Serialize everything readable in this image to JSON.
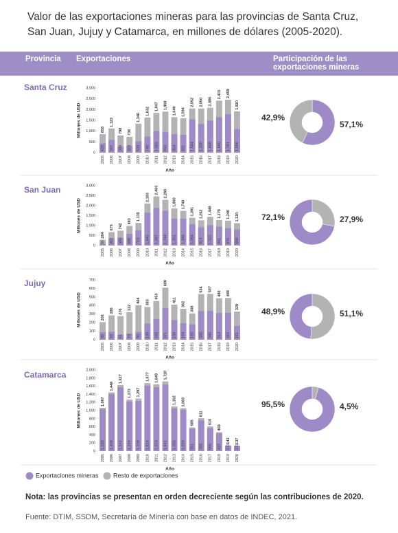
{
  "title": [
    "Valor de las exportaciones mineras para las provincias de Santa Cruz,",
    "San Juan, Jujuy y Catamarca, en millones de dólares (2005-2020)."
  ],
  "header": {
    "provincia": "Provincia",
    "exportaciones": "Exportaciones",
    "participacion": [
      "Participación de las",
      "exportaciones mineras"
    ]
  },
  "legend": [
    {
      "name": "Exportaciones mineras",
      "color": "#9d8ac6"
    },
    {
      "name": "Resto de exportaciones",
      "color": "#b3b3b3"
    }
  ],
  "note": "Nota: las provincias se presentan en orden decreciente según las contribuciones de 2020.",
  "source": "Fuente: DTIM, SSDM, Secretaría de Minería con base en datos de INDEC, 2021.",
  "chart_data": [
    {
      "type": "bar",
      "title": "Santa Cruz",
      "ylabel": "Millones de USD",
      "xlabel": "Año",
      "total_color": "#b3b3b3",
      "categories": [
        "2005",
        "2006",
        "2007",
        "2008",
        "2009",
        "2010",
        "2011",
        "2012",
        "2013",
        "2014",
        "2015",
        "2016",
        "2017",
        "2018",
        "2019",
        "2020"
      ],
      "series": [
        {
          "name": "Exportaciones mineras",
          "color": "#9d8ac6",
          "values": [
            429,
            597,
            289,
            323,
            533,
            746,
            1002,
            950,
            854,
            831,
            1544,
            1330,
            1489,
            1640,
            1791,
            1096
          ],
          "value_labels": [
            "429",
            "597",
            "289",
            "323",
            "533",
            "746",
            "1,002",
            "950",
            "854",
            "831",
            "1,544",
            "1,330",
            "1,489",
            "1,640",
            "1,791",
            "1,096"
          ]
        }
      ],
      "totals": [
        858,
        1123,
        798,
        736,
        1346,
        1632,
        1847,
        1908,
        1649,
        1594,
        2052,
        2050,
        2086,
        2415,
        2459,
        1920
      ],
      "total_labels": [
        "858",
        "1,123",
        "798",
        "736",
        "1,346",
        "1,632",
        "1,847",
        "1,908",
        "1,649",
        "1,594",
        "2,052",
        "2,050",
        "2,086",
        "2,415",
        "2,459",
        "1,920"
      ],
      "ylim": [
        0,
        3000
      ],
      "yticks": [
        0,
        500,
        {
          "value": 1000,
          "label": "1,000"
        },
        {
          "value": 1500,
          "label": "1,500"
        },
        {
          "value": 2000,
          "label": "2,000"
        },
        {
          "value": 2500,
          "label": "2,500"
        },
        {
          "value": 3000,
          "label": "3,000"
        }
      ]
    },
    {
      "type": "pie",
      "colors": [
        "#9d8ac6",
        "#b3b3b3"
      ],
      "values": [
        57.1,
        42.9
      ],
      "value_labels": [
        "57,1%",
        "42,9%"
      ]
    },
    {
      "type": "bar",
      "title": "San Juan",
      "ylabel": "Millones de USD",
      "xlabel": "Año",
      "total_color": "#b3b3b3",
      "categories": [
        "2005",
        "2006",
        "2007",
        "2008",
        "2009",
        "2010",
        "2011",
        "2012",
        "2013",
        "2014",
        "2015",
        "2016",
        "2017",
        "2018",
        "2019",
        "2020"
      ],
      "series": [
        {
          "name": "Exportaciones mineras",
          "color": "#9d8ac6",
          "values": [
            86,
            362,
            390,
            590,
            753,
            1645,
            1887,
            1744,
            1351,
            1346,
            1064,
            914,
            1022,
            941,
            875,
            808
          ],
          "value_labels": [
            "86",
            "362",
            "390",
            "590",
            "753",
            "1,645",
            "1,887",
            "1,744",
            "1,351",
            "1,346",
            "1,064",
            "914",
            "1,022",
            "941",
            "875",
            "808"
          ]
        }
      ],
      "totals": [
        284,
        675,
        742,
        983,
        1135,
        2103,
        2463,
        2290,
        1860,
        1740,
        1391,
        1262,
        1440,
        1279,
        1246,
        1120
      ],
      "total_labels": [
        "284",
        "675",
        "742",
        "983",
        "1,135",
        "2,103",
        "2,463",
        "2,290",
        "1,860",
        "1,740",
        "1,391",
        "1,262",
        "1,440",
        "1,279",
        "1,246",
        "1,120"
      ],
      "ylim": [
        0,
        3000
      ],
      "yticks": [
        0,
        500,
        {
          "value": 1000,
          "label": "1,000"
        },
        {
          "value": 1500,
          "label": "1,500"
        },
        {
          "value": 2000,
          "label": "2,000"
        },
        {
          "value": 2500,
          "label": "2,500"
        },
        {
          "value": 3000,
          "label": "3,000"
        }
      ]
    },
    {
      "type": "pie",
      "colors": [
        "#9d8ac6",
        "#b3b3b3"
      ],
      "values": [
        72.1,
        27.9
      ],
      "value_labels": [
        "72,1%",
        "27,9%"
      ]
    },
    {
      "type": "bar",
      "title": "Jujuy",
      "ylabel": "Millones de USD",
      "xlabel": "Año",
      "total_color": "#b3b3b3",
      "categories": [
        "2005",
        "2006",
        "2007",
        "2008",
        "2009",
        "2010",
        "2011",
        "2012",
        "2013",
        "2014",
        "2015",
        "2016",
        "2017",
        "2018",
        "2019",
        "2020"
      ],
      "series": [
        {
          "name": "Exportaciones mineras",
          "color": "#9d8ac6",
          "values": [
            89,
            93,
            61,
            73,
            90,
            189,
            243,
            371,
            230,
            194,
            180,
            335,
            340,
            313,
            315,
            161
          ],
          "value_labels": [
            "89",
            "93",
            "61",
            "73",
            "90",
            "189",
            "243",
            "371",
            "230",
            "194",
            "180",
            "335",
            "340",
            "313",
            "315",
            "161"
          ]
        }
      ],
      "totals": [
        206,
        286,
        276,
        322,
        404,
        383,
        453,
        609,
        411,
        362,
        308,
        534,
        537,
        486,
        489,
        329
      ],
      "total_labels": [
        "206",
        "286",
        "276",
        "322",
        "404",
        "383",
        "453",
        "609",
        "411",
        "362",
        "308",
        "534",
        "537",
        "486",
        "489",
        "329"
      ],
      "ylim": [
        0,
        700
      ],
      "yticks": [
        0,
        100,
        200,
        300,
        400,
        500,
        600,
        700
      ]
    },
    {
      "type": "pie",
      "colors": [
        "#9d8ac6",
        "#b3b3b3"
      ],
      "values": [
        48.9,
        51.1
      ],
      "value_labels": [
        "48,9%",
        "51,1%"
      ]
    },
    {
      "type": "bar",
      "title": "Catamarca",
      "ylabel": "Millones de USD",
      "xlabel": "Año",
      "total_color": "#b3b3b3",
      "categories": [
        "2005",
        "2006",
        "2007",
        "2008",
        "2009",
        "2010",
        "2011",
        "2012",
        "2013",
        "2014",
        "2015",
        "2016",
        "2017",
        "2018",
        "2019",
        "2020"
      ],
      "series": [
        {
          "name": "Exportaciones mineras",
          "color": "#9d8ac6",
          "values": [
            1039,
            1409,
            1572,
            1224,
            1236,
            1614,
            1573,
            1641,
            1055,
            1019,
            551,
            755,
            566,
            437,
            133,
            131
          ],
          "value_labels": [
            "1,039",
            "1,409",
            "1,572",
            "1,224",
            "1,236",
            "1,614",
            "1,573",
            "1,641",
            "1,055",
            "1,019",
            "551",
            "755",
            "566",
            "437",
            "133",
            "131"
          ]
        }
      ],
      "totals": [
        1067,
        1448,
        1627,
        1273,
        1297,
        1677,
        1649,
        1720,
        1102,
        1060,
        585,
        811,
        610,
        469,
        143,
        137
      ],
      "total_labels": [
        "1,067",
        "1,448",
        "1,627",
        "1,273",
        "1,297",
        "1,677",
        "1,649",
        "1,720",
        "1,102",
        "1,060",
        "585",
        "811",
        "610",
        "469",
        "143",
        "137"
      ],
      "ylim": [
        0,
        2000
      ],
      "yticks": [
        0,
        200,
        400,
        600,
        800,
        {
          "value": 1000,
          "label": "1,000"
        },
        {
          "value": 1200,
          "label": "1,200"
        },
        {
          "value": 1400,
          "label": "1,400"
        },
        {
          "value": 1600,
          "label": "1,600"
        },
        {
          "value": 1800,
          "label": "1,800"
        },
        {
          "value": 2000,
          "label": "2,000"
        }
      ]
    },
    {
      "type": "pie",
      "colors": [
        "#9d8ac6",
        "#b3b3b3"
      ],
      "values": [
        95.5,
        4.5
      ],
      "value_labels": [
        "95,5%",
        "4,5%"
      ]
    }
  ]
}
